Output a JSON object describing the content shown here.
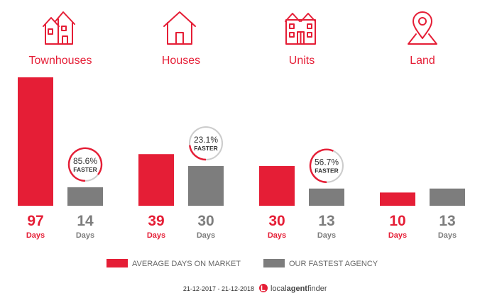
{
  "chart_data": {
    "type": "bar",
    "categories": [
      "Townhouses",
      "Houses",
      "Units",
      "Land"
    ],
    "series": [
      {
        "name": "AVERAGE DAYS ON MARKET",
        "values": [
          97,
          39,
          30,
          10
        ]
      },
      {
        "name": "OUR FASTEST AGENCY",
        "values": [
          14,
          30,
          13,
          13
        ]
      }
    ],
    "unit_label": "Days",
    "faster": [
      "85.6%",
      "23.1%",
      "56.7%",
      null
    ],
    "faster_label": "FASTER",
    "ylim": [
      0,
      97
    ],
    "colors": {
      "average": "#e51e36",
      "fastest": "#7d7d7d",
      "badge_ring_red": "#e51e36",
      "badge_ring_grey": "#cccccc"
    }
  },
  "icons": [
    "townhouse-icon",
    "house-icon",
    "units-icon",
    "land-pin-icon"
  ],
  "footer": {
    "date_range": "21-12-2017 - 21-12-2018",
    "brand_part1": "local",
    "brand_part2": "agent",
    "brand_part3": "finder"
  }
}
